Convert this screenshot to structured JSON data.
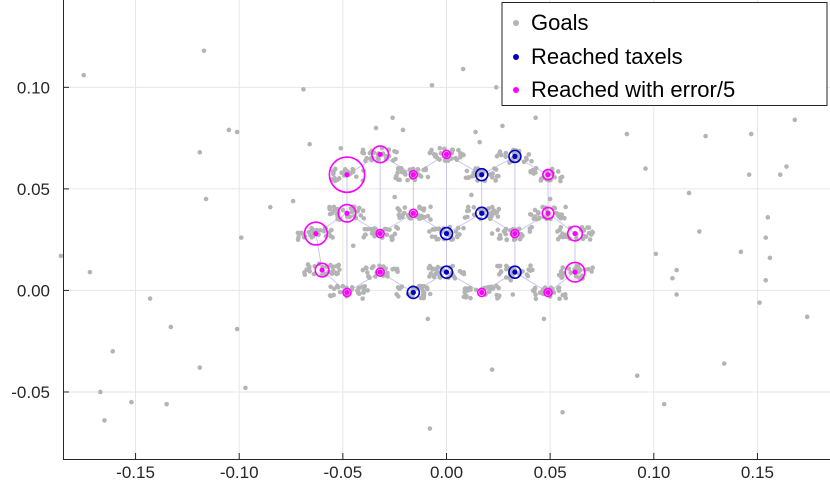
{
  "chart_data": {
    "type": "scatter",
    "title": "",
    "xlabel": "",
    "ylabel": "",
    "xlim": [
      -0.185,
      0.185
    ],
    "ylim": [
      -0.083,
      0.143
    ],
    "grid": true,
    "legend_position": "top-right",
    "x_ticks": [
      -0.15,
      -0.1,
      -0.05,
      0.0,
      0.05,
      0.1,
      0.15
    ],
    "y_ticks": [
      -0.05,
      0.0,
      0.05,
      0.1
    ],
    "x_tick_labels": [
      "-0.15",
      "-0.10",
      "-0.05",
      "0.00",
      "0.05",
      "0.10",
      "0.15"
    ],
    "y_tick_labels": [
      "-0.05",
      "0.00",
      "0.05",
      "0.10"
    ],
    "colors": {
      "goals": "#b4b4b4",
      "reached": "#0000cc",
      "error": "#ff00ff",
      "mesh": "#c8c8f0",
      "grid": "#e6e6e6"
    },
    "series": [
      {
        "name": "Goals",
        "marker": "dot",
        "scattered": [
          [
            -0.186,
            0.017
          ],
          [
            -0.175,
            0.106
          ],
          [
            -0.172,
            0.009
          ],
          [
            -0.165,
            -0.064
          ],
          [
            -0.161,
            -0.03
          ],
          [
            -0.167,
            -0.05
          ],
          [
            -0.152,
            -0.055
          ],
          [
            -0.143,
            -0.004
          ],
          [
            -0.135,
            -0.056
          ],
          [
            -0.133,
            -0.018
          ],
          [
            -0.117,
            0.118
          ],
          [
            -0.119,
            0.068
          ],
          [
            -0.116,
            0.045
          ],
          [
            -0.119,
            -0.038
          ],
          [
            -0.105,
            0.079
          ],
          [
            -0.101,
            0.078
          ],
          [
            -0.101,
            -0.019
          ],
          [
            -0.099,
            0.026
          ],
          [
            -0.097,
            -0.048
          ],
          [
            -0.085,
            0.041
          ],
          [
            -0.074,
            0.044
          ],
          [
            -0.069,
            0.099
          ],
          [
            -0.066,
            0.072
          ],
          [
            -0.051,
            0.07
          ],
          [
            -0.057,
            0.009
          ],
          [
            -0.045,
            0.022
          ],
          [
            -0.034,
            0.08
          ],
          [
            -0.021,
            0.079
          ],
          [
            -0.026,
            0.085
          ],
          [
            -0.009,
            -0.014
          ],
          [
            -0.006,
            0.067
          ],
          [
            -0.01,
            0.06
          ],
          [
            -0.008,
            -0.068
          ],
          [
            -0.007,
            0.101
          ],
          [
            0.008,
            0.109
          ],
          [
            0.014,
            0.078
          ],
          [
            0.016,
            0.073
          ],
          [
            0.022,
            0.028
          ],
          [
            0.022,
            -0.039
          ],
          [
            0.024,
            0.1
          ],
          [
            0.027,
            0.081
          ],
          [
            0.032,
            -0.002
          ],
          [
            0.043,
            0.085
          ],
          [
            0.047,
            -0.014
          ],
          [
            0.056,
            -0.06
          ],
          [
            0.087,
            0.077
          ],
          [
            0.092,
            -0.042
          ],
          [
            0.096,
            0.06
          ],
          [
            0.101,
            0.018
          ],
          [
            0.105,
            -0.056
          ],
          [
            0.109,
            0.006
          ],
          [
            0.111,
            0.01
          ],
          [
            0.111,
            -0.002
          ],
          [
            0.117,
            0.048
          ],
          [
            0.122,
            0.029
          ],
          [
            0.125,
            0.076
          ],
          [
            0.134,
            -0.036
          ],
          [
            0.147,
            0.077
          ],
          [
            0.146,
            0.057
          ],
          [
            0.142,
            0.019
          ],
          [
            0.154,
            0.026
          ],
          [
            0.155,
            0.036
          ],
          [
            0.156,
            0.016
          ],
          [
            0.154,
            0.005
          ],
          [
            0.151,
            -0.006
          ],
          [
            0.161,
            0.057
          ],
          [
            0.164,
            0.061
          ],
          [
            0.168,
            0.084
          ],
          [
            0.174,
            -0.013
          ],
          [
            0.031,
            0.005
          ],
          [
            -0.038,
            0.0
          ],
          [
            0.003,
            0.012
          ],
          [
            -0.025,
            0.046
          ],
          [
            0.012,
            0.047
          ],
          [
            0.05,
            0.045
          ]
        ],
        "clusters": [
          [
            -0.048,
            0.057
          ],
          [
            -0.032,
            0.067
          ],
          [
            -0.016,
            0.057
          ],
          [
            0.0,
            0.067
          ],
          [
            0.017,
            0.057
          ],
          [
            0.033,
            0.066
          ],
          [
            0.049,
            0.057
          ],
          [
            -0.063,
            0.028
          ],
          [
            -0.048,
            0.038
          ],
          [
            -0.032,
            0.028
          ],
          [
            -0.016,
            0.038
          ],
          [
            0.0,
            0.028
          ],
          [
            0.017,
            0.038
          ],
          [
            0.033,
            0.028
          ],
          [
            0.049,
            0.038
          ],
          [
            0.062,
            0.028
          ],
          [
            -0.06,
            0.01
          ],
          [
            -0.032,
            0.009
          ],
          [
            -0.016,
            -0.001
          ],
          [
            0.0,
            0.009
          ],
          [
            0.017,
            -0.001
          ],
          [
            0.033,
            0.009
          ],
          [
            0.049,
            -0.001
          ],
          [
            0.062,
            0.009
          ],
          [
            -0.048,
            -0.001
          ]
        ]
      },
      {
        "name": "Reached taxels",
        "marker": "circle",
        "points": [
          [
            0.0,
            0.028
          ],
          [
            0.017,
            0.057
          ],
          [
            0.033,
            0.066
          ],
          [
            0.017,
            0.038
          ],
          [
            -0.016,
            -0.001
          ],
          [
            0.0,
            0.009
          ],
          [
            0.033,
            0.009
          ]
        ]
      },
      {
        "name": "Reached with error/5",
        "marker": "circle",
        "points": [
          [
            -0.048,
            0.057,
            0.0085
          ],
          [
            -0.032,
            0.067,
            0.004
          ],
          [
            -0.016,
            0.057,
            0.0012
          ],
          [
            0.0,
            0.067,
            0.0012
          ],
          [
            -0.063,
            0.028,
            0.0055
          ],
          [
            -0.048,
            0.038,
            0.0042
          ],
          [
            -0.032,
            0.028,
            0.0018
          ],
          [
            -0.016,
            0.038,
            0.0012
          ],
          [
            0.049,
            0.057,
            0.0025
          ],
          [
            0.049,
            0.038,
            0.0028
          ],
          [
            0.062,
            0.028,
            0.0035
          ],
          [
            0.062,
            0.009,
            0.0047
          ],
          [
            -0.06,
            0.01,
            0.0033
          ],
          [
            -0.032,
            0.009,
            0.0012
          ],
          [
            -0.048,
            -0.001,
            0.0014
          ],
          [
            0.017,
            -0.001,
            0.0015
          ],
          [
            0.049,
            -0.001,
            0.0018
          ],
          [
            0.033,
            0.028,
            0.0012
          ]
        ]
      }
    ],
    "mesh_nodes": [
      [
        -0.048,
        0.057
      ],
      [
        -0.032,
        0.067
      ],
      [
        -0.016,
        0.057
      ],
      [
        0.0,
        0.067
      ],
      [
        0.017,
        0.057
      ],
      [
        0.033,
        0.066
      ],
      [
        0.049,
        0.057
      ],
      [
        -0.063,
        0.028
      ],
      [
        -0.048,
        0.038
      ],
      [
        -0.032,
        0.028
      ],
      [
        -0.016,
        0.038
      ],
      [
        0.0,
        0.028
      ],
      [
        0.017,
        0.038
      ],
      [
        0.033,
        0.028
      ],
      [
        0.049,
        0.038
      ],
      [
        0.062,
        0.028
      ],
      [
        -0.06,
        0.01
      ],
      [
        -0.048,
        -0.001
      ],
      [
        -0.032,
        0.009
      ],
      [
        -0.016,
        -0.001
      ],
      [
        0.0,
        0.009
      ],
      [
        0.017,
        -0.001
      ],
      [
        0.033,
        0.009
      ],
      [
        0.049,
        -0.001
      ],
      [
        0.062,
        0.009
      ]
    ],
    "mesh_edges": [
      [
        0,
        1
      ],
      [
        1,
        2
      ],
      [
        2,
        3
      ],
      [
        3,
        4
      ],
      [
        4,
        5
      ],
      [
        5,
        6
      ],
      [
        7,
        8
      ],
      [
        8,
        9
      ],
      [
        9,
        10
      ],
      [
        10,
        11
      ],
      [
        11,
        12
      ],
      [
        12,
        13
      ],
      [
        13,
        14
      ],
      [
        14,
        15
      ],
      [
        16,
        17
      ],
      [
        17,
        18
      ],
      [
        18,
        19
      ],
      [
        19,
        20
      ],
      [
        20,
        21
      ],
      [
        21,
        22
      ],
      [
        22,
        23
      ],
      [
        23,
        24
      ],
      [
        0,
        8
      ],
      [
        2,
        10
      ],
      [
        4,
        12
      ],
      [
        6,
        14
      ],
      [
        1,
        9
      ],
      [
        3,
        11
      ],
      [
        5,
        13
      ],
      [
        8,
        17
      ],
      [
        10,
        19
      ],
      [
        12,
        21
      ],
      [
        14,
        23
      ],
      [
        9,
        18
      ],
      [
        11,
        20
      ],
      [
        13,
        22
      ],
      [
        7,
        16
      ],
      [
        15,
        24
      ]
    ]
  }
}
